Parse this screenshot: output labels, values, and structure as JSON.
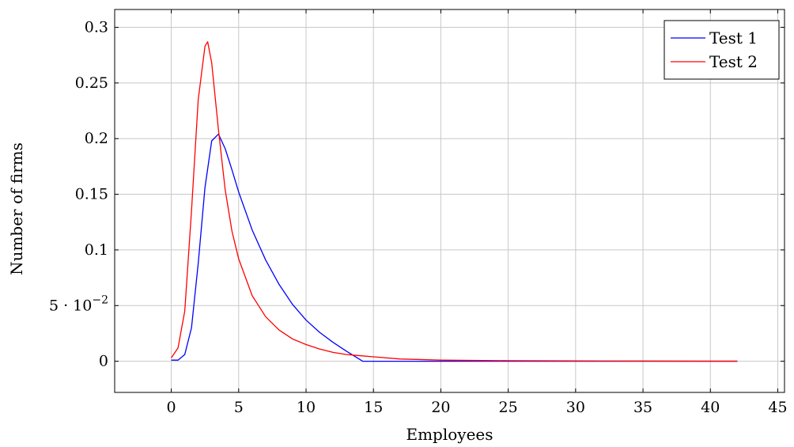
{
  "chart_data": {
    "type": "line",
    "title": "",
    "xlabel": "Employees",
    "ylabel": "Number of firms",
    "xlim": [
      -4.2,
      45.5
    ],
    "ylim": [
      -0.028,
      0.316
    ],
    "xticks": [
      0,
      5,
      10,
      15,
      20,
      25,
      30,
      35,
      40,
      45
    ],
    "xtick_labels": [
      "0",
      "5",
      "10",
      "15",
      "20",
      "25",
      "30",
      "35",
      "40",
      "45"
    ],
    "yticks": [
      0,
      0.05,
      0.1,
      0.15,
      0.2,
      0.25,
      0.3
    ],
    "ytick_labels": [
      "0",
      "5 · 10",
      "0.1",
      "0.15",
      "0.2",
      "0.25",
      "0.3"
    ],
    "ytick_exponent": {
      "value": "0.05",
      "base": "5 · 10",
      "exp": "−2"
    },
    "grid": true,
    "legend_position": "top-right",
    "series": [
      {
        "name": "Test 1",
        "color": "#0000ff",
        "x": [
          0,
          0.5,
          1,
          1.5,
          2,
          2.5,
          3,
          3.5,
          4,
          4.5,
          5,
          6,
          7,
          8,
          9,
          10,
          11,
          12,
          13,
          14.2,
          15,
          20,
          25,
          30,
          35,
          40,
          42
        ],
        "y": [
          0.001,
          0.001,
          0.006,
          0.03,
          0.088,
          0.156,
          0.198,
          0.204,
          0.191,
          0.172,
          0.152,
          0.118,
          0.091,
          0.069,
          0.051,
          0.037,
          0.026,
          0.017,
          0.009,
          0,
          0,
          0,
          0,
          0,
          0,
          0,
          0
        ]
      },
      {
        "name": "Test 2",
        "color": "#ff0000",
        "x": [
          0,
          0.5,
          1,
          1.5,
          2,
          2.5,
          2.7,
          3,
          3.5,
          4,
          4.5,
          5,
          6,
          7,
          8,
          9,
          10,
          11,
          12,
          13,
          14,
          15,
          17,
          20,
          25,
          30,
          35,
          40,
          42
        ],
        "y": [
          0.003,
          0.012,
          0.045,
          0.135,
          0.235,
          0.283,
          0.287,
          0.268,
          0.208,
          0.154,
          0.117,
          0.092,
          0.059,
          0.04,
          0.028,
          0.02,
          0.015,
          0.011,
          0.008,
          0.006,
          0.005,
          0.004,
          0.002,
          0.001,
          0.0005,
          0.0003,
          0.0002,
          0.0001,
          0.0001
        ]
      }
    ]
  }
}
